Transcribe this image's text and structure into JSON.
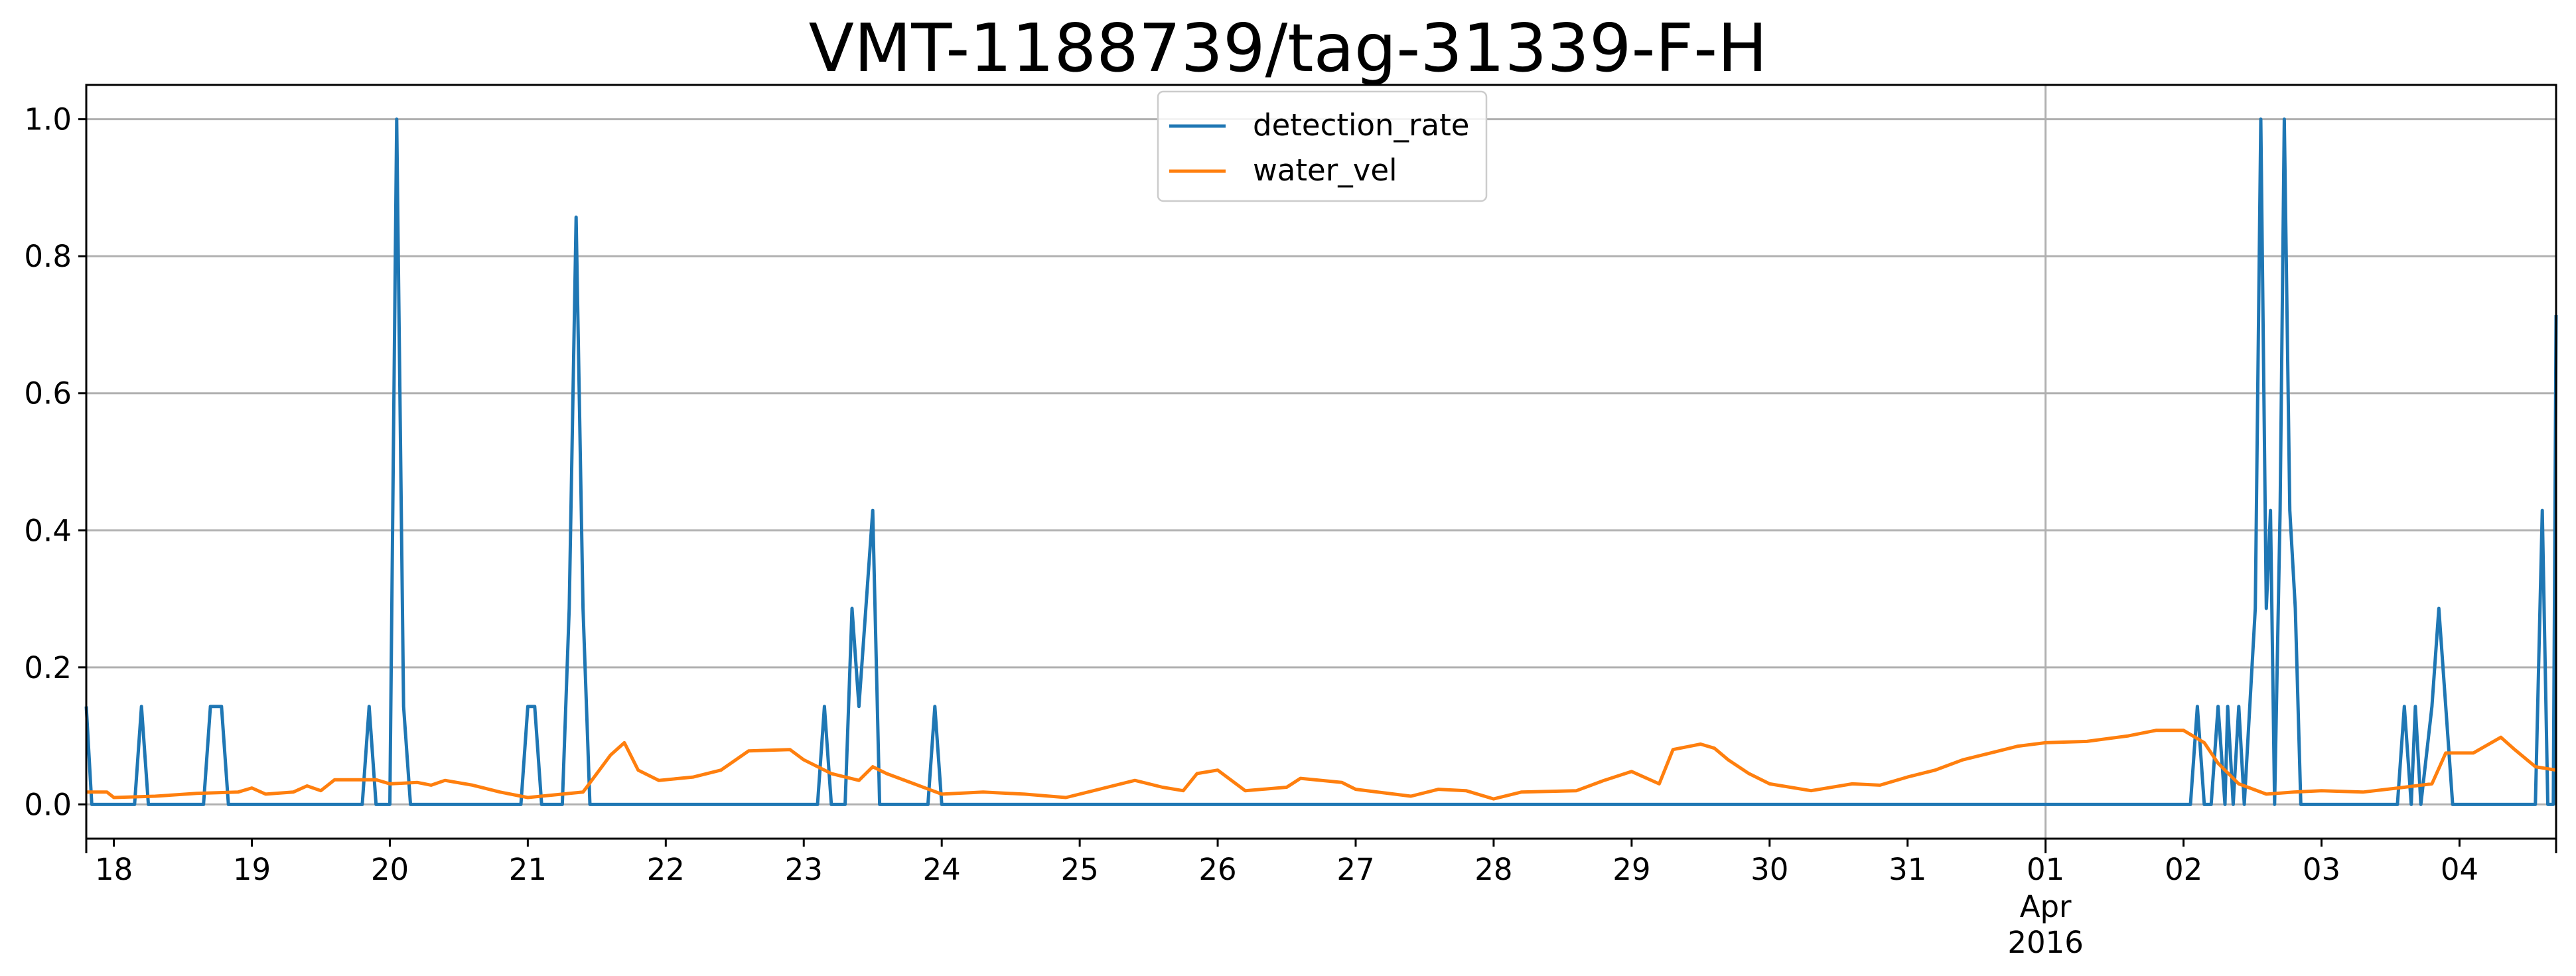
{
  "chart_data": {
    "type": "line",
    "title": "VMT-1188739/tag-31339-F-H",
    "xlabel": "",
    "ylabel": "",
    "ylim": [
      -0.05,
      1.05
    ],
    "yticks": [
      "0.0",
      "0.2",
      "0.4",
      "0.6",
      "0.8",
      "1.0"
    ],
    "ytick_values": [
      0,
      0.2,
      0.4,
      0.6,
      0.8,
      1.0
    ],
    "xlim_days": [
      17.8,
      35.7
    ],
    "xticks": [
      {
        "day": 18,
        "label": "18"
      },
      {
        "day": 19,
        "label": "19"
      },
      {
        "day": 20,
        "label": "20"
      },
      {
        "day": 21,
        "label": "21"
      },
      {
        "day": 22,
        "label": "22"
      },
      {
        "day": 23,
        "label": "23"
      },
      {
        "day": 24,
        "label": "24"
      },
      {
        "day": 25,
        "label": "25"
      },
      {
        "day": 26,
        "label": "26"
      },
      {
        "day": 27,
        "label": "27"
      },
      {
        "day": 28,
        "label": "28"
      },
      {
        "day": 29,
        "label": "29"
      },
      {
        "day": 30,
        "label": "30"
      },
      {
        "day": 31,
        "label": "31"
      },
      {
        "day": 32,
        "label": "01",
        "sub1": "Apr",
        "sub2": "2016"
      },
      {
        "day": 33,
        "label": "02"
      },
      {
        "day": 34,
        "label": "03"
      },
      {
        "day": 35,
        "label": "04"
      }
    ],
    "x_note": "x values are day-of-month from March 2016; 32 = 01 Apr 2016",
    "grid": true,
    "legend_position": "top-center",
    "series": [
      {
        "name": "detection_rate",
        "color": "#1f77b4",
        "points": [
          [
            17.8,
            0.143
          ],
          [
            17.84,
            0
          ],
          [
            18.15,
            0
          ],
          [
            18.2,
            0.143
          ],
          [
            18.25,
            0
          ],
          [
            18.65,
            0
          ],
          [
            18.7,
            0.143
          ],
          [
            18.78,
            0.143
          ],
          [
            18.83,
            0
          ],
          [
            19.8,
            0
          ],
          [
            19.85,
            0.143
          ],
          [
            19.9,
            0
          ],
          [
            20.0,
            0
          ],
          [
            20.05,
            1.0
          ],
          [
            20.1,
            0.143
          ],
          [
            20.15,
            0
          ],
          [
            20.95,
            0
          ],
          [
            21.0,
            0.143
          ],
          [
            21.05,
            0.143
          ],
          [
            21.1,
            0
          ],
          [
            21.25,
            0
          ],
          [
            21.3,
            0.286
          ],
          [
            21.35,
            0.857
          ],
          [
            21.4,
            0.286
          ],
          [
            21.45,
            0
          ],
          [
            23.1,
            0
          ],
          [
            23.15,
            0.143
          ],
          [
            23.2,
            0
          ],
          [
            23.3,
            0
          ],
          [
            23.35,
            0.286
          ],
          [
            23.4,
            0.143
          ],
          [
            23.45,
            0.286
          ],
          [
            23.5,
            0.429
          ],
          [
            23.55,
            0
          ],
          [
            23.9,
            0
          ],
          [
            23.95,
            0.143
          ],
          [
            24.0,
            0
          ],
          [
            33.05,
            0
          ],
          [
            33.1,
            0.143
          ],
          [
            33.15,
            0
          ],
          [
            33.2,
            0
          ],
          [
            33.25,
            0.143
          ],
          [
            33.3,
            0
          ],
          [
            33.32,
            0.143
          ],
          [
            33.36,
            0
          ],
          [
            33.4,
            0.143
          ],
          [
            33.44,
            0
          ],
          [
            33.52,
            0.286
          ],
          [
            33.56,
            1.0
          ],
          [
            33.6,
            0.286
          ],
          [
            33.63,
            0.429
          ],
          [
            33.66,
            0
          ],
          [
            33.7,
            0.429
          ],
          [
            33.73,
            1.0
          ],
          [
            33.77,
            0.429
          ],
          [
            33.81,
            0.286
          ],
          [
            33.85,
            0
          ],
          [
            34.55,
            0
          ],
          [
            34.6,
            0.143
          ],
          [
            34.65,
            0
          ],
          [
            34.68,
            0.143
          ],
          [
            34.72,
            0
          ],
          [
            34.8,
            0.143
          ],
          [
            34.85,
            0.286
          ],
          [
            34.9,
            0.143
          ],
          [
            34.95,
            0
          ],
          [
            35.55,
            0
          ],
          [
            35.6,
            0.429
          ],
          [
            35.64,
            0
          ],
          [
            35.68,
            0
          ],
          [
            35.7,
            0.714
          ]
        ]
      },
      {
        "name": "water_vel",
        "color": "#ff7f0e",
        "points": [
          [
            17.8,
            0.018
          ],
          [
            17.95,
            0.018
          ],
          [
            18.0,
            0.01
          ],
          [
            18.3,
            0.012
          ],
          [
            18.6,
            0.016
          ],
          [
            18.9,
            0.018
          ],
          [
            19.0,
            0.024
          ],
          [
            19.1,
            0.015
          ],
          [
            19.3,
            0.018
          ],
          [
            19.4,
            0.027
          ],
          [
            19.5,
            0.02
          ],
          [
            19.6,
            0.036
          ],
          [
            19.9,
            0.036
          ],
          [
            20.0,
            0.03
          ],
          [
            20.2,
            0.032
          ],
          [
            20.3,
            0.028
          ],
          [
            20.4,
            0.035
          ],
          [
            20.6,
            0.028
          ],
          [
            20.8,
            0.018
          ],
          [
            21.0,
            0.01
          ],
          [
            21.2,
            0.014
          ],
          [
            21.4,
            0.018
          ],
          [
            21.5,
            0.045
          ],
          [
            21.6,
            0.072
          ],
          [
            21.7,
            0.09
          ],
          [
            21.8,
            0.05
          ],
          [
            21.95,
            0.035
          ],
          [
            22.2,
            0.04
          ],
          [
            22.4,
            0.05
          ],
          [
            22.6,
            0.078
          ],
          [
            22.9,
            0.08
          ],
          [
            23.0,
            0.065
          ],
          [
            23.2,
            0.045
          ],
          [
            23.4,
            0.035
          ],
          [
            23.5,
            0.055
          ],
          [
            23.6,
            0.045
          ],
          [
            23.8,
            0.03
          ],
          [
            24.0,
            0.015
          ],
          [
            24.3,
            0.018
          ],
          [
            24.6,
            0.015
          ],
          [
            24.9,
            0.01
          ],
          [
            25.2,
            0.025
          ],
          [
            25.4,
            0.035
          ],
          [
            25.6,
            0.025
          ],
          [
            25.75,
            0.02
          ],
          [
            25.85,
            0.045
          ],
          [
            26.0,
            0.05
          ],
          [
            26.2,
            0.02
          ],
          [
            26.5,
            0.025
          ],
          [
            26.6,
            0.038
          ],
          [
            26.9,
            0.032
          ],
          [
            27.0,
            0.022
          ],
          [
            27.4,
            0.012
          ],
          [
            27.6,
            0.022
          ],
          [
            27.8,
            0.02
          ],
          [
            28.0,
            0.008
          ],
          [
            28.2,
            0.018
          ],
          [
            28.6,
            0.02
          ],
          [
            28.8,
            0.035
          ],
          [
            29.0,
            0.048
          ],
          [
            29.2,
            0.03
          ],
          [
            29.3,
            0.08
          ],
          [
            29.5,
            0.088
          ],
          [
            29.6,
            0.082
          ],
          [
            29.7,
            0.065
          ],
          [
            29.85,
            0.045
          ],
          [
            30.0,
            0.03
          ],
          [
            30.3,
            0.02
          ],
          [
            30.6,
            0.03
          ],
          [
            30.8,
            0.028
          ],
          [
            31.0,
            0.04
          ],
          [
            31.2,
            0.05
          ],
          [
            31.4,
            0.065
          ],
          [
            31.6,
            0.075
          ],
          [
            31.8,
            0.085
          ],
          [
            32.0,
            0.09
          ],
          [
            32.3,
            0.092
          ],
          [
            32.6,
            0.1
          ],
          [
            32.8,
            0.108
          ],
          [
            33.0,
            0.108
          ],
          [
            33.15,
            0.09
          ],
          [
            33.25,
            0.06
          ],
          [
            33.4,
            0.03
          ],
          [
            33.6,
            0.015
          ],
          [
            33.8,
            0.018
          ],
          [
            34.0,
            0.02
          ],
          [
            34.3,
            0.018
          ],
          [
            34.6,
            0.025
          ],
          [
            34.8,
            0.03
          ],
          [
            34.9,
            0.075
          ],
          [
            35.1,
            0.075
          ],
          [
            35.3,
            0.098
          ],
          [
            35.4,
            0.08
          ],
          [
            35.55,
            0.055
          ],
          [
            35.7,
            0.05
          ]
        ]
      }
    ]
  }
}
